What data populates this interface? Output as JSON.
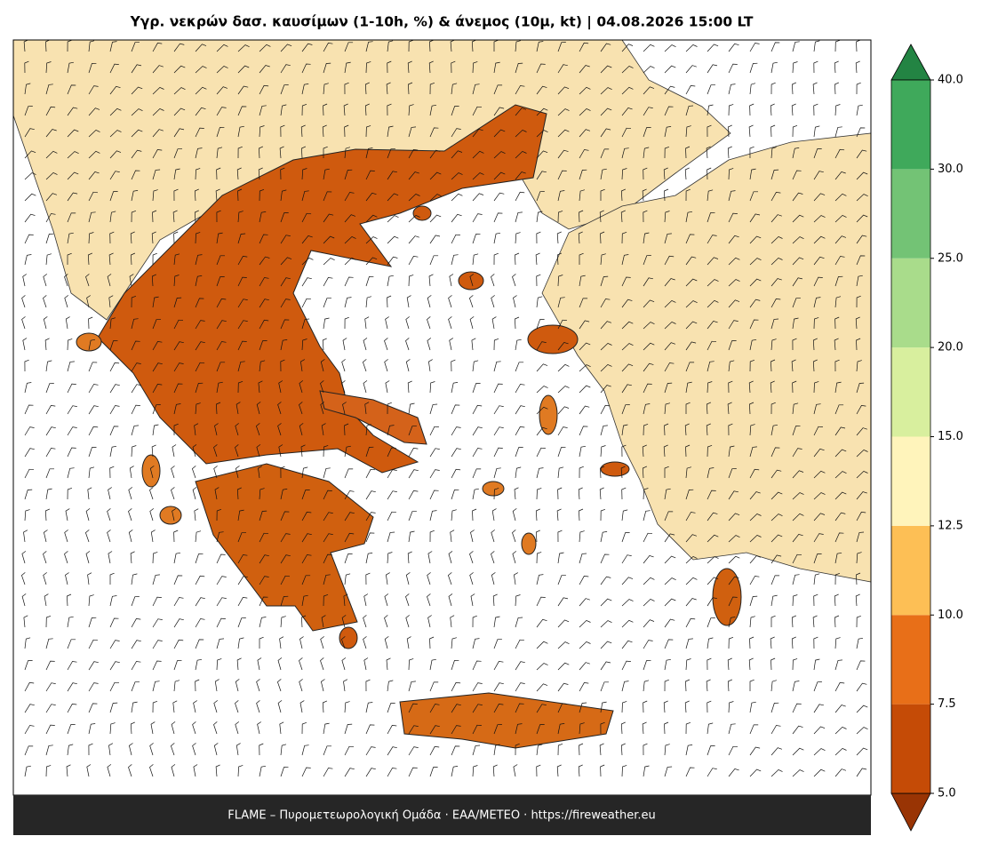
{
  "header": {
    "title": "Υγρ. νεκρών δασ. καυσίμων (1-10h, %) & άνεμος (10μ, kt)  |  04.08.2026 15:00 LT"
  },
  "footer": {
    "text": "FLAME – Πυρομετεωρολογική Ομάδα · ΕΑΑ/METEO · https://fireweather.eu"
  },
  "colorbar": {
    "ticks": [
      {
        "value": 5,
        "label": "5.0"
      },
      {
        "value": 7.5,
        "label": "7.5"
      },
      {
        "value": 10,
        "label": "10.0"
      },
      {
        "value": 12.5,
        "label": "12.5"
      },
      {
        "value": 15,
        "label": "15.0"
      },
      {
        "value": 20,
        "label": "20.0"
      },
      {
        "value": 25,
        "label": "25.0"
      },
      {
        "value": 30,
        "label": "30.0"
      },
      {
        "value": 40,
        "label": "40.0"
      }
    ],
    "colors": [
      "#c54b06",
      "#e86f18",
      "#fdbf55",
      "#fff4bb",
      "#d8ef9e",
      "#a9dc8b",
      "#73c375",
      "#3fa95b"
    ],
    "under_color": "#993404",
    "over_color": "#238443"
  }
}
